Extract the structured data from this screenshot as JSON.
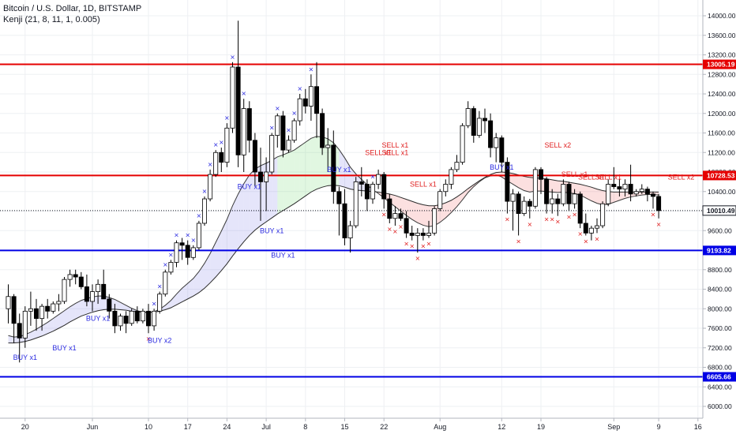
{
  "header": {
    "title": "Bitcoin / U.S. Dollar, 1D, BITSTAMP",
    "indicator": "Kenji (21, 8, 11, 1, 0.005)"
  },
  "chart_data": {
    "type": "candlestick",
    "symbol": "Bitcoin / U.S. Dollar",
    "timeframe": "1D",
    "exchange": "BITSTAMP",
    "indicator": "Kenji (21, 8, 11, 1, 0.005)",
    "ylim": [
      5800,
      14200
    ],
    "y_ticks": [
      "6000.00",
      "6400.00",
      "6800.00",
      "7200.00",
      "7600.00",
      "8000.00",
      "8400.00",
      "8800.00",
      "9200.00",
      "9600.00",
      "10000.00",
      "10400.00",
      "10800.00",
      "11200.00",
      "11600.00",
      "12000.00",
      "12400.00",
      "12800.00",
      "13200.00",
      "13600.00",
      "14000.00"
    ],
    "x_ticks": [
      {
        "label": "20",
        "day": 3
      },
      {
        "label": "Jun",
        "day": 15
      },
      {
        "label": "10",
        "day": 25
      },
      {
        "label": "17",
        "day": 32
      },
      {
        "label": "24",
        "day": 39
      },
      {
        "label": "Jul",
        "day": 46
      },
      {
        "label": "8",
        "day": 53
      },
      {
        "label": "15",
        "day": 60
      },
      {
        "label": "22",
        "day": 67
      },
      {
        "label": "Aug",
        "day": 77
      },
      {
        "label": "12",
        "day": 88
      },
      {
        "label": "19",
        "day": 95
      },
      {
        "label": "Sep",
        "day": 108
      },
      {
        "label": "9",
        "day": 116
      },
      {
        "label": "16",
        "day": 123
      }
    ],
    "horizontal_lines": [
      {
        "value": 13005.19,
        "label": "13005.19",
        "color": "#e50000"
      },
      {
        "value": 10728.53,
        "label": "10728.53",
        "color": "#e50000"
      },
      {
        "value": 9193.82,
        "label": "9193.82",
        "color": "#0000e5"
      },
      {
        "value": 6605.66,
        "label": "6605.66",
        "color": "#0000e5"
      }
    ],
    "last_price": {
      "value": 10010.49,
      "label": "10010.49"
    },
    "candles": [
      {
        "o": 8000,
        "h": 8500,
        "l": 7700,
        "c": 8250
      },
      {
        "o": 8250,
        "h": 8300,
        "l": 7300,
        "c": 7700
      },
      {
        "o": 7700,
        "h": 7900,
        "l": 6900,
        "c": 7400
      },
      {
        "o": 7400,
        "h": 8050,
        "l": 7200,
        "c": 7950
      },
      {
        "o": 7950,
        "h": 8350,
        "l": 7650,
        "c": 8000
      },
      {
        "o": 8000,
        "h": 8200,
        "l": 7550,
        "c": 7800
      },
      {
        "o": 7800,
        "h": 8100,
        "l": 7550,
        "c": 8050
      },
      {
        "o": 8050,
        "h": 8200,
        "l": 7800,
        "c": 7950
      },
      {
        "o": 7950,
        "h": 8150,
        "l": 7900,
        "c": 8100
      },
      {
        "o": 8100,
        "h": 8300,
        "l": 7950,
        "c": 8150
      },
      {
        "o": 8150,
        "h": 8650,
        "l": 8100,
        "c": 8600
      },
      {
        "o": 8600,
        "h": 8800,
        "l": 8450,
        "c": 8700
      },
      {
        "o": 8700,
        "h": 8800,
        "l": 8500,
        "c": 8650
      },
      {
        "o": 8650,
        "h": 8750,
        "l": 8400,
        "c": 8450
      },
      {
        "o": 8450,
        "h": 8700,
        "l": 8050,
        "c": 8150
      },
      {
        "o": 8150,
        "h": 8500,
        "l": 7950,
        "c": 8350
      },
      {
        "o": 8350,
        "h": 8600,
        "l": 8100,
        "c": 8500
      },
      {
        "o": 8500,
        "h": 8800,
        "l": 8200,
        "c": 8200
      },
      {
        "o": 8200,
        "h": 8300,
        "l": 7800,
        "c": 7950
      },
      {
        "o": 7950,
        "h": 8100,
        "l": 7500,
        "c": 7650
      },
      {
        "o": 7650,
        "h": 7900,
        "l": 7550,
        "c": 7850
      },
      {
        "o": 7850,
        "h": 7950,
        "l": 7500,
        "c": 7700
      },
      {
        "o": 7700,
        "h": 8000,
        "l": 7650,
        "c": 7950
      },
      {
        "o": 7950,
        "h": 8050,
        "l": 7700,
        "c": 7750
      },
      {
        "o": 7750,
        "h": 8000,
        "l": 7700,
        "c": 7950
      },
      {
        "o": 7950,
        "h": 8100,
        "l": 7500,
        "c": 7650
      },
      {
        "o": 7650,
        "h": 8000,
        "l": 7550,
        "c": 7950
      },
      {
        "o": 7950,
        "h": 8350,
        "l": 7900,
        "c": 8300
      },
      {
        "o": 8300,
        "h": 8800,
        "l": 8250,
        "c": 8750
      },
      {
        "o": 8750,
        "h": 9000,
        "l": 8700,
        "c": 8950
      },
      {
        "o": 8950,
        "h": 9400,
        "l": 8850,
        "c": 9350
      },
      {
        "o": 9350,
        "h": 9450,
        "l": 9000,
        "c": 9300
      },
      {
        "o": 9300,
        "h": 9400,
        "l": 8900,
        "c": 9050
      },
      {
        "o": 9050,
        "h": 9300,
        "l": 9000,
        "c": 9250
      },
      {
        "o": 9250,
        "h": 9800,
        "l": 9200,
        "c": 9750
      },
      {
        "o": 9750,
        "h": 10300,
        "l": 9700,
        "c": 10250
      },
      {
        "o": 10250,
        "h": 10850,
        "l": 10200,
        "c": 10750
      },
      {
        "o": 10750,
        "h": 11250,
        "l": 10700,
        "c": 11200
      },
      {
        "o": 11200,
        "h": 11300,
        "l": 10800,
        "c": 11000
      },
      {
        "o": 11000,
        "h": 11800,
        "l": 10900,
        "c": 11700
      },
      {
        "o": 11700,
        "h": 13050,
        "l": 11600,
        "c": 12950
      },
      {
        "o": 12950,
        "h": 13900,
        "l": 10900,
        "c": 11150
      },
      {
        "o": 11150,
        "h": 12300,
        "l": 10800,
        "c": 12100
      },
      {
        "o": 12100,
        "h": 12250,
        "l": 11200,
        "c": 11450
      },
      {
        "o": 11450,
        "h": 11600,
        "l": 10500,
        "c": 10800
      },
      {
        "o": 10800,
        "h": 11300,
        "l": 9800,
        "c": 10600
      },
      {
        "o": 10600,
        "h": 11100,
        "l": 10000,
        "c": 10800
      },
      {
        "o": 10800,
        "h": 11600,
        "l": 10750,
        "c": 11550
      },
      {
        "o": 11550,
        "h": 12000,
        "l": 11300,
        "c": 11950
      },
      {
        "o": 11950,
        "h": 12050,
        "l": 11100,
        "c": 11250
      },
      {
        "o": 11250,
        "h": 11550,
        "l": 11200,
        "c": 11450
      },
      {
        "o": 11450,
        "h": 11900,
        "l": 11400,
        "c": 11850
      },
      {
        "o": 11850,
        "h": 12400,
        "l": 11750,
        "c": 12300
      },
      {
        "o": 12300,
        "h": 12500,
        "l": 12000,
        "c": 12150
      },
      {
        "o": 12150,
        "h": 12800,
        "l": 11850,
        "c": 12550
      },
      {
        "o": 12550,
        "h": 13050,
        "l": 11500,
        "c": 12000
      },
      {
        "o": 12000,
        "h": 12100,
        "l": 11150,
        "c": 11300
      },
      {
        "o": 11300,
        "h": 11700,
        "l": 10800,
        "c": 11350
      },
      {
        "o": 11350,
        "h": 11650,
        "l": 10150,
        "c": 10400
      },
      {
        "o": 10400,
        "h": 10500,
        "l": 9500,
        "c": 10150
      },
      {
        "o": 10150,
        "h": 10450,
        "l": 9300,
        "c": 9450
      },
      {
        "o": 9450,
        "h": 9800,
        "l": 9150,
        "c": 9700
      },
      {
        "o": 9700,
        "h": 10700,
        "l": 9650,
        "c": 10600
      },
      {
        "o": 10600,
        "h": 10900,
        "l": 10300,
        "c": 10550
      },
      {
        "o": 10550,
        "h": 10650,
        "l": 10000,
        "c": 10250
      },
      {
        "o": 10250,
        "h": 10600,
        "l": 10150,
        "c": 10550
      },
      {
        "o": 10550,
        "h": 10850,
        "l": 10450,
        "c": 10750
      },
      {
        "o": 10750,
        "h": 10800,
        "l": 10050,
        "c": 10250
      },
      {
        "o": 10250,
        "h": 10350,
        "l": 9750,
        "c": 9850
      },
      {
        "o": 9850,
        "h": 10100,
        "l": 9700,
        "c": 9950
      },
      {
        "o": 9950,
        "h": 10050,
        "l": 9800,
        "c": 9850
      },
      {
        "o": 9850,
        "h": 10000,
        "l": 9450,
        "c": 9550
      },
      {
        "o": 9550,
        "h": 9700,
        "l": 9400,
        "c": 9500
      },
      {
        "o": 9500,
        "h": 9650,
        "l": 9150,
        "c": 9550
      },
      {
        "o": 9550,
        "h": 9650,
        "l": 9400,
        "c": 9500
      },
      {
        "o": 9500,
        "h": 9800,
        "l": 9450,
        "c": 9550
      },
      {
        "o": 9550,
        "h": 10100,
        "l": 9500,
        "c": 10050
      },
      {
        "o": 10050,
        "h": 10450,
        "l": 10000,
        "c": 10400
      },
      {
        "o": 10400,
        "h": 10650,
        "l": 10300,
        "c": 10550
      },
      {
        "o": 10550,
        "h": 10900,
        "l": 10450,
        "c": 10850
      },
      {
        "o": 10850,
        "h": 11150,
        "l": 10800,
        "c": 11000
      },
      {
        "o": 11000,
        "h": 11800,
        "l": 10950,
        "c": 11750
      },
      {
        "o": 11750,
        "h": 12250,
        "l": 11700,
        "c": 12100
      },
      {
        "o": 12100,
        "h": 12150,
        "l": 11400,
        "c": 11550
      },
      {
        "o": 11550,
        "h": 12050,
        "l": 11500,
        "c": 11900
      },
      {
        "o": 11900,
        "h": 12100,
        "l": 11600,
        "c": 11850
      },
      {
        "o": 11850,
        "h": 12000,
        "l": 11100,
        "c": 11300
      },
      {
        "o": 11300,
        "h": 11600,
        "l": 11000,
        "c": 11500
      },
      {
        "o": 11500,
        "h": 11550,
        "l": 10800,
        "c": 11000
      },
      {
        "o": 11000,
        "h": 11100,
        "l": 9950,
        "c": 10200
      },
      {
        "o": 10200,
        "h": 10450,
        "l": 9600,
        "c": 10350
      },
      {
        "o": 10350,
        "h": 10400,
        "l": 9500,
        "c": 9950
      },
      {
        "o": 9950,
        "h": 10300,
        "l": 9900,
        "c": 10200
      },
      {
        "o": 10200,
        "h": 10250,
        "l": 9850,
        "c": 10100
      },
      {
        "o": 10100,
        "h": 10900,
        "l": 10050,
        "c": 10850
      },
      {
        "o": 10850,
        "h": 10900,
        "l": 10350,
        "c": 10650
      },
      {
        "o": 10650,
        "h": 10700,
        "l": 9950,
        "c": 10150
      },
      {
        "o": 10150,
        "h": 10450,
        "l": 9950,
        "c": 10250
      },
      {
        "o": 10250,
        "h": 10350,
        "l": 9900,
        "c": 10150
      },
      {
        "o": 10150,
        "h": 10650,
        "l": 10100,
        "c": 10550
      },
      {
        "o": 10550,
        "h": 10600,
        "l": 10000,
        "c": 10150
      },
      {
        "o": 10150,
        "h": 10450,
        "l": 10050,
        "c": 10350
      },
      {
        "o": 10350,
        "h": 10400,
        "l": 9650,
        "c": 9750
      },
      {
        "o": 9750,
        "h": 9950,
        "l": 9500,
        "c": 9550
      },
      {
        "o": 9550,
        "h": 9700,
        "l": 9400,
        "c": 9650
      },
      {
        "o": 9650,
        "h": 9850,
        "l": 9550,
        "c": 9700
      },
      {
        "o": 9700,
        "h": 10200,
        "l": 9650,
        "c": 10150
      },
      {
        "o": 10150,
        "h": 10650,
        "l": 10100,
        "c": 10550
      },
      {
        "o": 10550,
        "h": 10900,
        "l": 10450,
        "c": 10500
      },
      {
        "o": 10500,
        "h": 10650,
        "l": 10300,
        "c": 10450
      },
      {
        "o": 10450,
        "h": 10650,
        "l": 10300,
        "c": 10550
      },
      {
        "o": 10550,
        "h": 10950,
        "l": 10200,
        "c": 10350
      },
      {
        "o": 10350,
        "h": 10450,
        "l": 10300,
        "c": 10400
      },
      {
        "o": 10400,
        "h": 10550,
        "l": 10350,
        "c": 10450
      },
      {
        "o": 10450,
        "h": 10500,
        "l": 10200,
        "c": 10350
      },
      {
        "o": 10350,
        "h": 10400,
        "l": 10050,
        "c": 10300
      },
      {
        "o": 10300,
        "h": 10350,
        "l": 9850,
        "c": 10010
      }
    ],
    "fast_line": [
      7450,
      7420,
      7430,
      7470,
      7520,
      7580,
      7650,
      7720,
      7800,
      7880,
      7960,
      8040,
      8110,
      8170,
      8210,
      8240,
      8260,
      8260,
      8230,
      8190,
      8130,
      8070,
      8010,
      7960,
      7930,
      7920,
      7940,
      7990,
      8070,
      8170,
      8300,
      8420,
      8520,
      8620,
      8760,
      8930,
      9130,
      9360,
      9590,
      9830,
      10110,
      10350,
      10560,
      10740,
      10860,
      10930,
      10980,
      11040,
      11110,
      11150,
      11200,
      11250,
      11330,
      11410,
      11490,
      11530,
      11520,
      11480,
      11400,
      11260,
      11090,
      10900,
      10760,
      10650,
      10540,
      10440,
      10360,
      10270,
      10180,
      10090,
      10000,
      9910,
      9830,
      9760,
      9710,
      9680,
      9700,
      9770,
      9860,
      9970,
      10090,
      10230,
      10380,
      10500,
      10600,
      10680,
      10720,
      10740,
      10700,
      10620,
      10550,
      10480,
      10420,
      10390,
      10410,
      10410,
      10400,
      10390,
      10380,
      10390,
      10370,
      10360,
      10330,
      10270,
      10210,
      10160,
      10130,
      10140,
      10180,
      10220,
      10260,
      10290,
      10310,
      10330,
      10340,
      10340,
      10330
    ],
    "slow_line": [
      7300,
      7300,
      7310,
      7330,
      7360,
      7400,
      7440,
      7490,
      7540,
      7600,
      7660,
      7730,
      7790,
      7850,
      7890,
      7930,
      7960,
      7980,
      7990,
      7990,
      7980,
      7970,
      7950,
      7940,
      7930,
      7930,
      7930,
      7950,
      7980,
      8020,
      8080,
      8140,
      8200,
      8260,
      8330,
      8420,
      8530,
      8650,
      8780,
      8920,
      9080,
      9230,
      9370,
      9500,
      9610,
      9700,
      9780,
      9860,
      9940,
      10010,
      10080,
      10150,
      10230,
      10310,
      10390,
      10450,
      10490,
      10520,
      10530,
      10520,
      10490,
      10450,
      10430,
      10420,
      10410,
      10400,
      10390,
      10370,
      10350,
      10320,
      10280,
      10240,
      10200,
      10160,
      10130,
      10110,
      10110,
      10130,
      10170,
      10220,
      10290,
      10370,
      10460,
      10540,
      10620,
      10690,
      10750,
      10790,
      10800,
      10790,
      10770,
      10740,
      10710,
      10690,
      10680,
      10670,
      10660,
      10640,
      10620,
      10610,
      10590,
      10570,
      10550,
      10520,
      10490,
      10450,
      10420,
      10400,
      10390,
      10390,
      10390,
      10390,
      10390,
      10390,
      10390,
      10390,
      10390
    ],
    "signals": [
      {
        "label": "BUY x1",
        "day": 3,
        "price": 6950,
        "type": "buy"
      },
      {
        "label": "BUY x1",
        "day": 10,
        "price": 7150,
        "type": "buy"
      },
      {
        "label": "BUY x1",
        "day": 16,
        "price": 7750,
        "type": "buy"
      },
      {
        "label": "BUY x2",
        "day": 27,
        "price": 7300,
        "type": "buy"
      },
      {
        "label": "BUY x1",
        "day": 43,
        "price": 10450,
        "type": "buy"
      },
      {
        "label": "BUY x1",
        "day": 47,
        "price": 9550,
        "type": "buy"
      },
      {
        "label": "BUY x1",
        "day": 49,
        "price": 9050,
        "type": "buy"
      },
      {
        "label": "BUY x1",
        "day": 59,
        "price": 10800,
        "type": "buy"
      },
      {
        "label": "SELL x1",
        "day": 66,
        "price": 11150,
        "type": "sell"
      },
      {
        "label": "SELL x1",
        "day": 69,
        "price": 11300,
        "type": "sell"
      },
      {
        "label": "SELL x1",
        "day": 69,
        "price": 11150,
        "type": "sell"
      },
      {
        "label": "SELL x1",
        "day": 74,
        "price": 10500,
        "type": "sell"
      },
      {
        "label": "BUY x1",
        "day": 88,
        "price": 10850,
        "type": "buy"
      },
      {
        "label": "SELL x2",
        "day": 98,
        "price": 11300,
        "type": "sell"
      },
      {
        "label": "SELL x1",
        "day": 101,
        "price": 10700,
        "type": "sell"
      },
      {
        "label": "SELL x1",
        "day": 104,
        "price": 10650,
        "type": "sell"
      },
      {
        "label": "SELL x1",
        "day": 107,
        "price": 10650,
        "type": "sell"
      },
      {
        "label": "SELL x2",
        "day": 120,
        "price": 10650,
        "type": "sell"
      }
    ],
    "grid": true,
    "legend_placement": "top-left"
  }
}
